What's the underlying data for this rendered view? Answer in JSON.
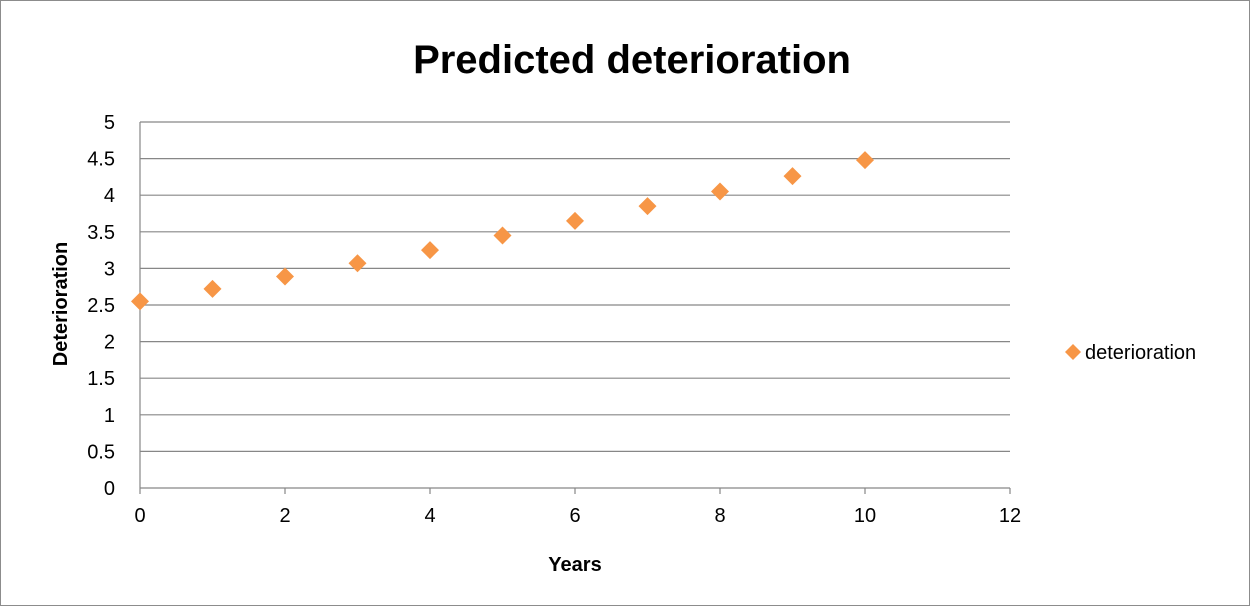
{
  "chart_data": {
    "type": "scatter",
    "title": "Predicted deterioration",
    "xlabel": "Years",
    "ylabel": "Deterioration",
    "xlim": [
      0,
      12
    ],
    "ylim": [
      0,
      5
    ],
    "x_ticks": [
      "0",
      "2",
      "4",
      "6",
      "8",
      "10",
      "12"
    ],
    "y_ticks": [
      "0",
      "0.5",
      "1",
      "1.5",
      "2",
      "2.5",
      "3",
      "3.5",
      "4",
      "4.5",
      "5"
    ],
    "grid": "horizontal",
    "legend_position": "right",
    "series": [
      {
        "name": "deterioration",
        "color": "#f79646",
        "marker": "diamond",
        "x": [
          0,
          1,
          2,
          3,
          4,
          5,
          6,
          7,
          8,
          9,
          10
        ],
        "y": [
          2.55,
          2.72,
          2.89,
          3.07,
          3.25,
          3.45,
          3.65,
          3.85,
          4.05,
          4.26,
          4.48
        ]
      }
    ]
  }
}
